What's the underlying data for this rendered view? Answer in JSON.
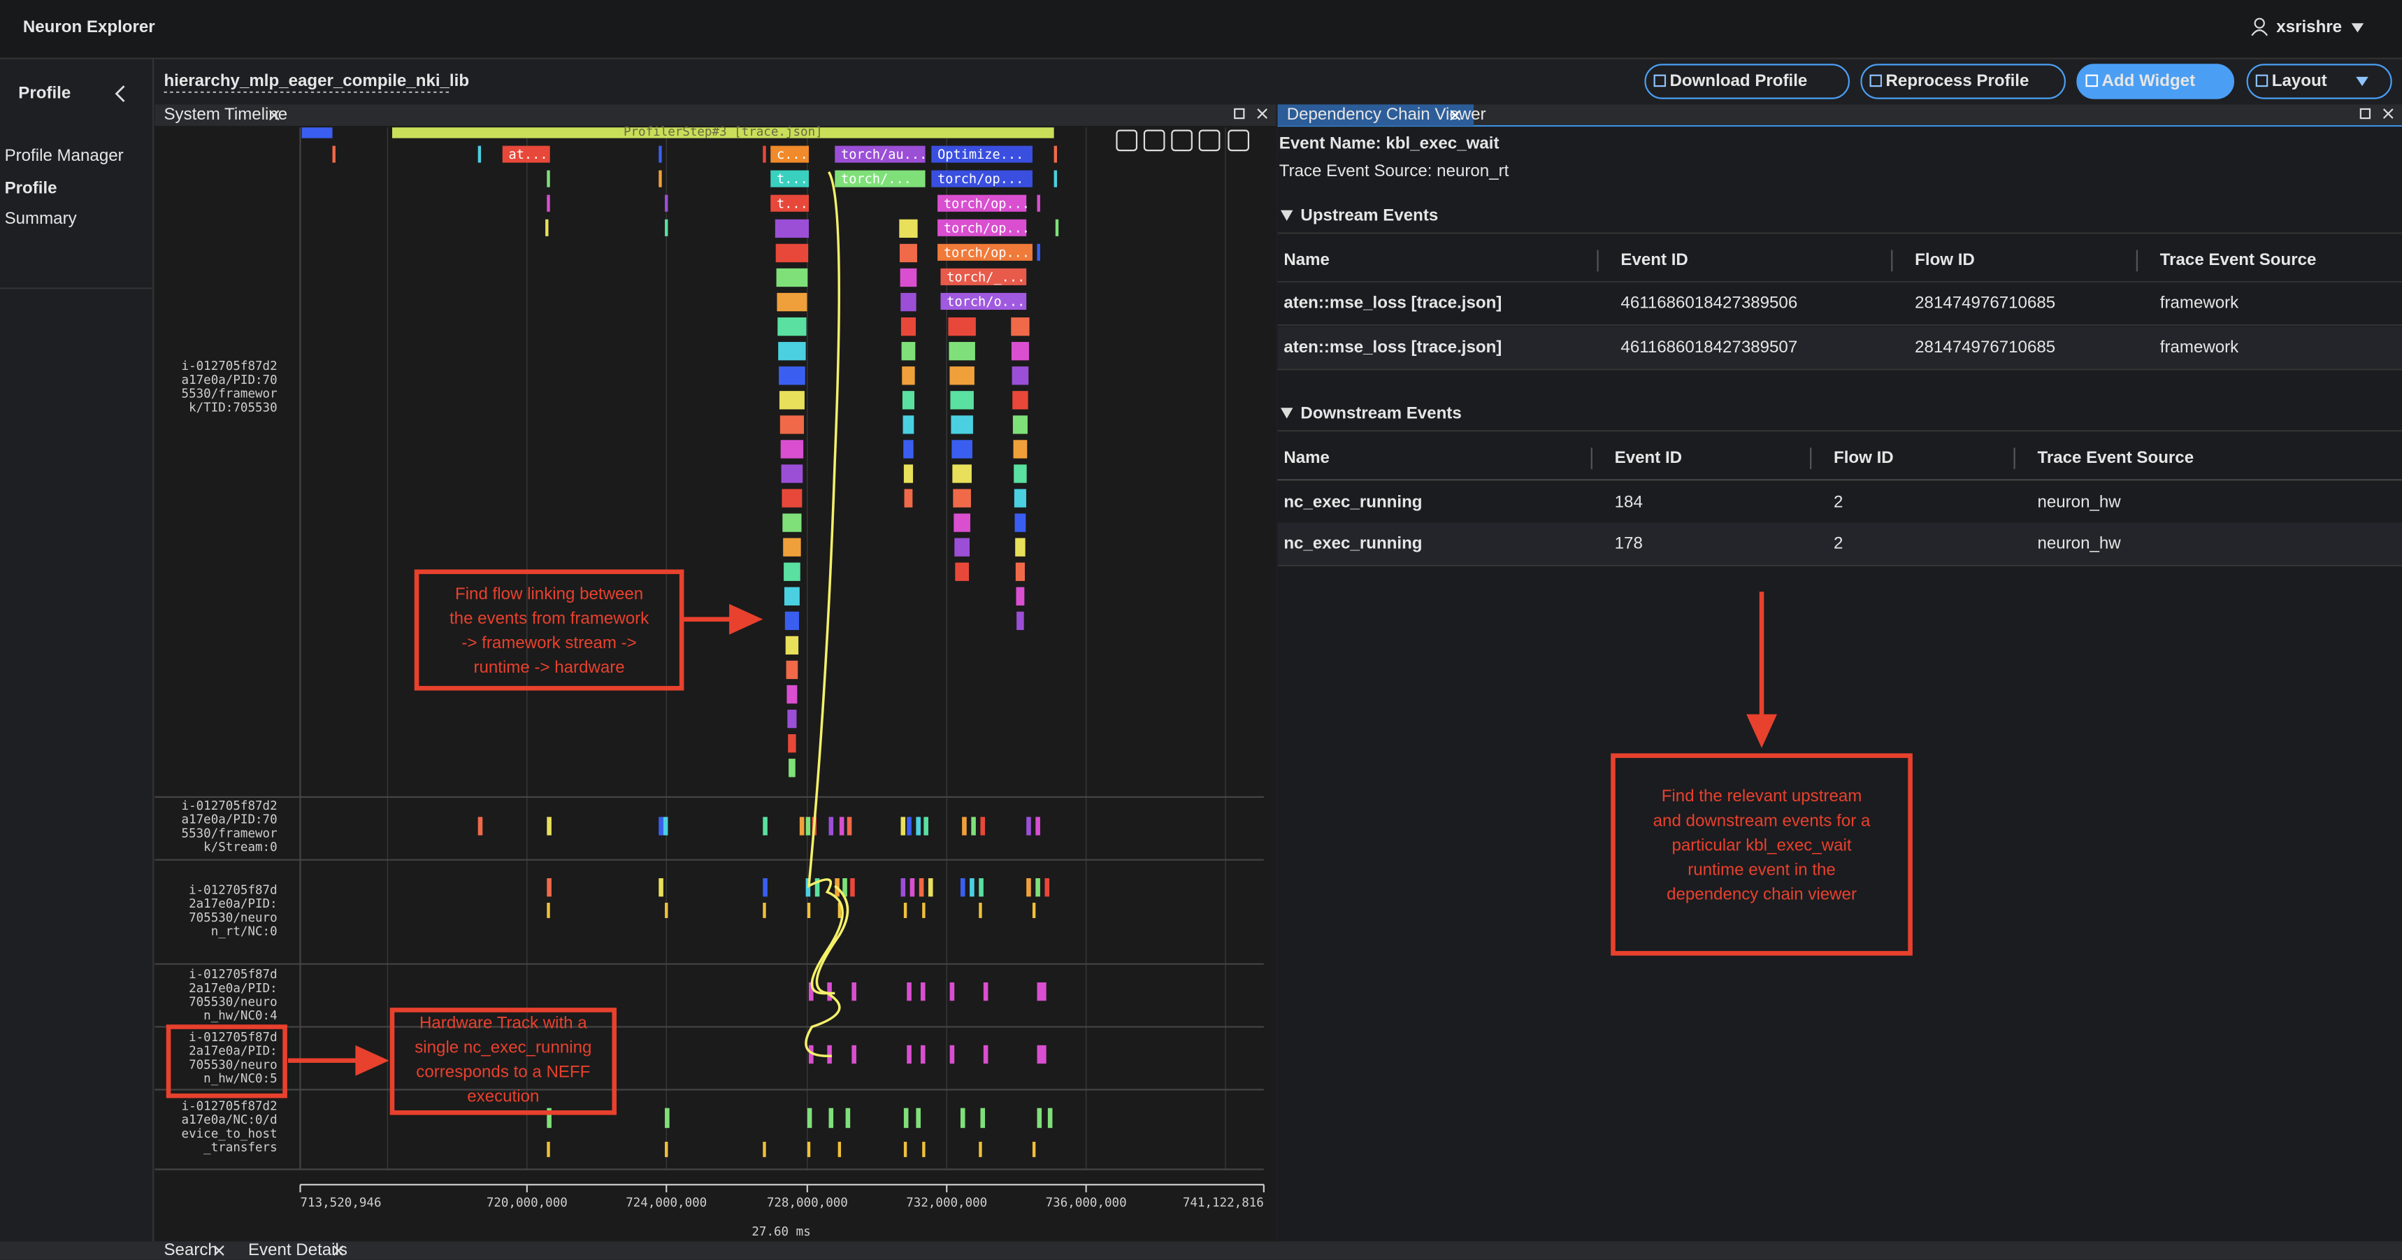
{
  "header": {
    "title": "Neuron Explorer",
    "user": "xsrishre"
  },
  "sidebar": {
    "title": "Profile",
    "items": [
      "Profile Manager",
      "Profile",
      "Summary"
    ]
  },
  "toolbar": {
    "profile_name": "hierarchy_mlp_eager_compile_nki_lib",
    "buttons": [
      "Download Profile",
      "Reprocess Profile",
      "Add Widget",
      "Layout"
    ]
  },
  "timeline": {
    "tab": "System Timeline",
    "top_bar": "ProfilerStep#3 [trace.json]",
    "event_labels": [
      "at...",
      "c...",
      "torch/au...",
      "Optimize...",
      "t...",
      "torch/...",
      "torch/op...",
      "t...",
      "torch/op...",
      "torch/op...",
      "torch/op...",
      "torch/_...",
      "torch/o..."
    ],
    "tracks": [
      [
        "i-012705f87d2",
        "a17e0a/PID:70",
        "5530/framewor",
        "k/TID:705530"
      ],
      [
        "i-012705f87d2",
        "a17e0a/PID:70",
        "5530/framewor",
        "k/Stream:0"
      ],
      [
        "i-012705f87d",
        "2a17e0a/PID:",
        "705530/neuro",
        "n_rt/NC:0"
      ],
      [
        "i-012705f87d",
        "2a17e0a/PID:",
        "705530/neuro",
        "n_hw/NC0:4"
      ],
      [
        "i-012705f87d",
        "2a17e0a/PID:",
        "705530/neuro",
        "n_hw/NC0:5"
      ],
      [
        "i-012705f87d2",
        "a17e0a/NC:0/d",
        "evice_to_host",
        "_transfers"
      ]
    ],
    "axis_ticks": [
      "713,520,946",
      "720,000,000",
      "724,000,000",
      "728,000,000",
      "732,000,000",
      "736,000,000",
      "741,122,816"
    ],
    "span": "27.60 ms",
    "annotations": [
      [
        "Find flow linking between",
        "the events from framework",
        "-> framework stream ->",
        "runtime -> hardware"
      ],
      [
        "Hardware Track with a",
        "single nc_exec_running",
        "corresponds to a NEFF",
        "execution"
      ]
    ]
  },
  "dependency_viewer": {
    "tab": "Dependency Chain Viewer",
    "event_name": "Event Name: kbl_exec_wait",
    "source": "Trace Event Source: neuron_rt",
    "upstream": {
      "title": "Upstream Events",
      "columns": [
        "Name",
        "Event ID",
        "Flow ID",
        "Trace Event Source"
      ],
      "rows": [
        [
          "aten::mse_loss [trace.json]",
          "4611686018427389506",
          "281474976710685",
          "framework"
        ],
        [
          "aten::mse_loss [trace.json]",
          "4611686018427389507",
          "281474976710685",
          "framework"
        ]
      ]
    },
    "downstream": {
      "title": "Downstream Events",
      "columns": [
        "Name",
        "Event ID",
        "Flow ID",
        "Trace Event Source"
      ],
      "rows": [
        [
          "nc_exec_running",
          "184",
          "2",
          "neuron_hw"
        ],
        [
          "nc_exec_running",
          "178",
          "2",
          "neuron_hw"
        ]
      ]
    },
    "annotation": [
      "Find the relevant upstream",
      "and downstream events for a",
      "particular kbl_exec_wait",
      "runtime event in the",
      "dependency chain viewer"
    ]
  },
  "bottom_tabs": [
    "Search",
    "Event Details"
  ]
}
